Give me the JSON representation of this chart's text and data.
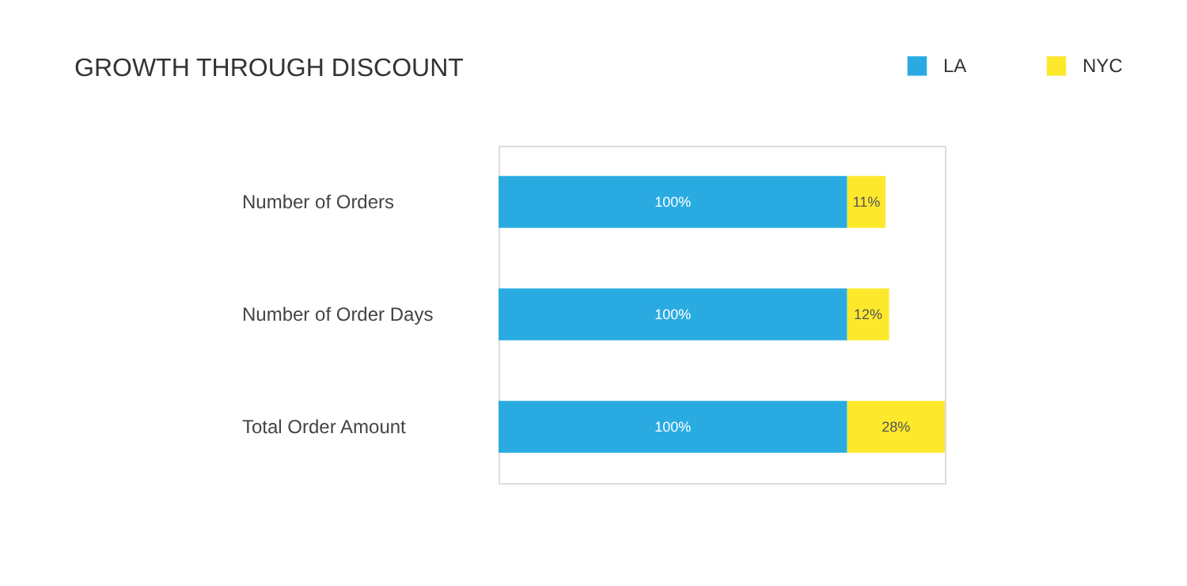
{
  "chart_data": {
    "type": "bar",
    "orientation": "horizontal",
    "stacked": true,
    "title": "GROWTH THROUGH DISCOUNT",
    "categories": [
      "Number of Orders",
      "Number of Order Days",
      "Total Order Amount"
    ],
    "series": [
      {
        "name": "LA",
        "color": "#29abe2",
        "values": [
          100,
          100,
          100
        ],
        "value_labels": [
          "100%",
          "100%",
          "100%"
        ]
      },
      {
        "name": "NYC",
        "color": "#fde82c",
        "values": [
          11,
          12,
          28
        ],
        "value_labels": [
          "11%",
          "12%",
          "28%"
        ]
      }
    ],
    "legend": "top right",
    "grid": false
  }
}
